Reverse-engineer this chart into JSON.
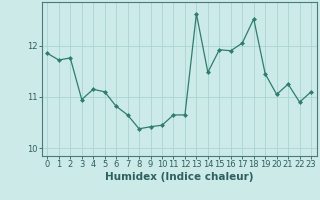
{
  "x": [
    0,
    1,
    2,
    3,
    4,
    5,
    6,
    7,
    8,
    9,
    10,
    11,
    12,
    13,
    14,
    15,
    16,
    17,
    18,
    19,
    20,
    21,
    22,
    23
  ],
  "y": [
    11.85,
    11.72,
    11.76,
    10.95,
    11.15,
    11.1,
    10.82,
    10.65,
    10.38,
    10.42,
    10.45,
    10.65,
    10.65,
    12.62,
    11.48,
    11.92,
    11.9,
    12.05,
    12.52,
    11.45,
    11.05,
    11.25,
    10.9,
    11.1
  ],
  "line_color": "#2e7d6e",
  "marker": "D",
  "marker_size": 2,
  "bg_color": "#cceae8",
  "grid_color": "#aad4d0",
  "xlabel": "Humidex (Indice chaleur)",
  "ylim": [
    9.85,
    12.85
  ],
  "yticks": [
    10,
    11,
    12
  ],
  "xticks": [
    0,
    1,
    2,
    3,
    4,
    5,
    6,
    7,
    8,
    9,
    10,
    11,
    12,
    13,
    14,
    15,
    16,
    17,
    18,
    19,
    20,
    21,
    22,
    23
  ],
  "tick_fontsize": 6,
  "xlabel_fontsize": 7.5,
  "tick_color": "#2e6060",
  "spine_color": "#4a7a7a"
}
